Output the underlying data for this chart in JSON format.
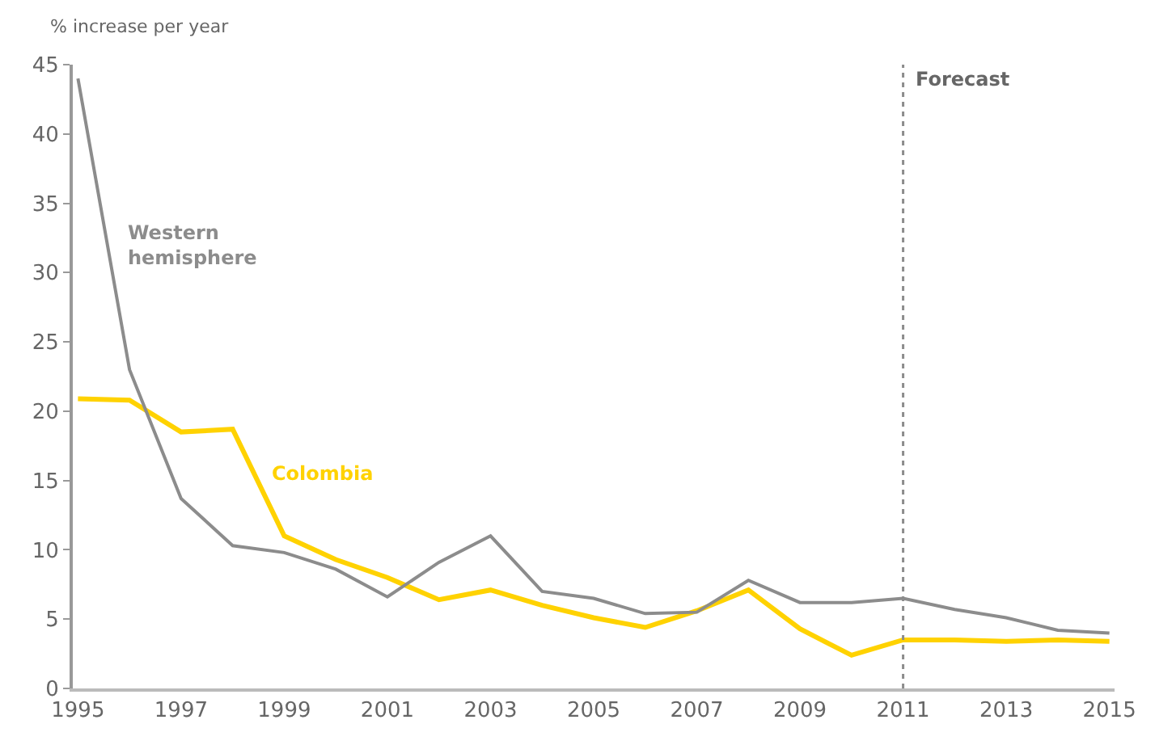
{
  "chart_data": {
    "type": "line",
    "ylabel": "% increase per year",
    "x": [
      1995,
      1996,
      1997,
      1998,
      1999,
      2000,
      2001,
      2002,
      2003,
      2004,
      2005,
      2006,
      2007,
      2008,
      2009,
      2010,
      2011,
      2012,
      2013,
      2014,
      2015
    ],
    "series": [
      {
        "name": "Western hemisphere",
        "color": "#8c8c8c",
        "values": [
          44,
          23,
          13.7,
          10.3,
          9.8,
          8.6,
          6.6,
          9.1,
          11,
          7,
          6.5,
          5.4,
          5.5,
          7.8,
          6.2,
          6.2,
          6.5,
          5.7,
          5.1,
          4.2,
          4.0
        ]
      },
      {
        "name": "Colombia",
        "color": "#ffd200",
        "values": [
          20.9,
          20.8,
          18.5,
          18.7,
          11,
          9.3,
          8,
          6.4,
          7.1,
          6,
          5.1,
          4.4,
          5.6,
          7.1,
          4.3,
          2.4,
          3.5,
          3.5,
          3.4,
          3.5,
          3.4
        ]
      }
    ],
    "xlim": [
      1994.9,
      2015.1
    ],
    "xticks": [
      1995,
      1997,
      1999,
      2001,
      2003,
      2005,
      2007,
      2009,
      2011,
      2013,
      2015
    ],
    "ylim": [
      0,
      45
    ],
    "yticks": [
      0,
      5,
      10,
      15,
      20,
      25,
      30,
      35,
      40,
      45
    ],
    "ref_lines": [
      {
        "axis": "x",
        "value": 2011,
        "label": "Forecast",
        "color": "#8c8c8c",
        "line_style": "dotted"
      }
    ],
    "grid": false,
    "legend": false,
    "marker": "none",
    "line_style": "solid"
  }
}
